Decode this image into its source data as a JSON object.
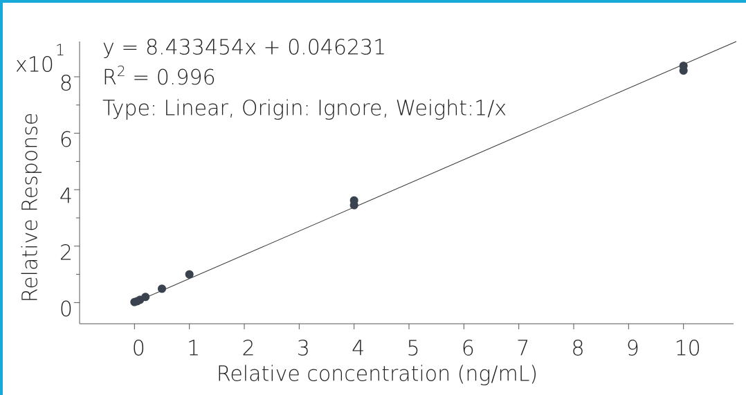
{
  "chart_data": {
    "type": "scatter",
    "x_label": "Relative concentration (ng/mL)",
    "y_label": "Relative Response",
    "y_multiplier": "x10",
    "y_multiplier_exponent": "1",
    "equation": "y = 8.433454x  + 0.046231",
    "r_squared": {
      "symbol": "R",
      "exponent": "2",
      "text": " = 0.996"
    },
    "fit_type": "Type: Linear, Origin: Ignore, Weight:1/x",
    "fit": {
      "slope": 8.433454,
      "intercept": 0.046231
    },
    "x": [
      0,
      0.05,
      0.1,
      0.2,
      0.5,
      1,
      4,
      4,
      10,
      10
    ],
    "values": [
      0.2,
      0.5,
      1,
      2,
      4.9,
      10,
      36.2,
      34.5,
      83.9,
      82.2
    ],
    "color": "#3a4250",
    "xlim": [
      -1,
      11
    ],
    "ylim": [
      -7.5,
      92.5
    ],
    "xticks": [
      0,
      1,
      2,
      3,
      4,
      5,
      6,
      7,
      8,
      9,
      10
    ],
    "yticks": [
      0,
      {
        "value": 20,
        "label": "2"
      },
      {
        "value": 40,
        "label": "4"
      },
      {
        "value": 60,
        "label": "6"
      },
      {
        "value": 80,
        "label": "8"
      }
    ],
    "yminor_ticks": [
      10,
      30,
      50,
      70
    ],
    "grid": false
  }
}
